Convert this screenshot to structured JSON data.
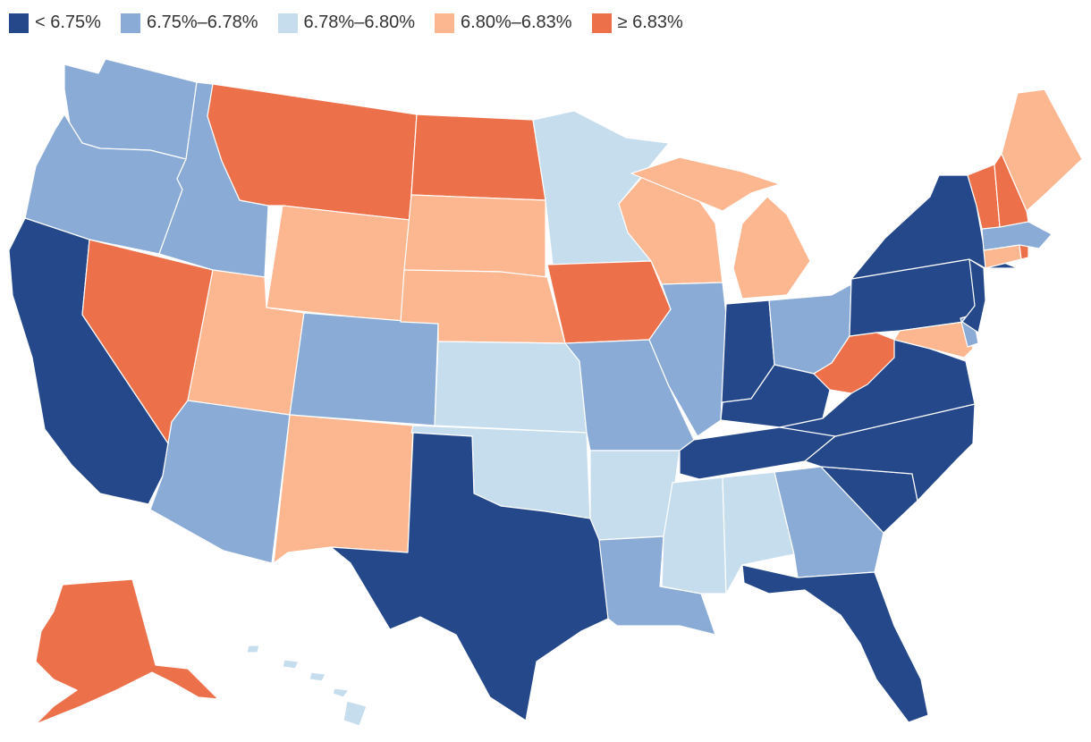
{
  "legend": {
    "items": [
      {
        "label": "< 6.75%",
        "color": "#24488a",
        "class": "c1"
      },
      {
        "label": "6.75%–6.78%",
        "color": "#8aabd5",
        "class": "c2"
      },
      {
        "label": "6.78%–6.80%",
        "color": "#c6ddee",
        "class": "c3"
      },
      {
        "label": "6.80%–6.83%",
        "color": "#fcb690",
        "class": "c4"
      },
      {
        "label": "≥ 6.83%",
        "color": "#ec714b",
        "class": "c5"
      }
    ]
  },
  "states": {
    "WA": "c2",
    "OR": "c2",
    "CA": "c1",
    "NV": "c5",
    "ID": "c2",
    "MT": "c5",
    "WY": "c4",
    "UT": "c4",
    "AZ": "c2",
    "CO": "c2",
    "NM": "c4",
    "ND": "c5",
    "SD": "c4",
    "NE": "c4",
    "KS": "c3",
    "OK": "c3",
    "TX": "c1",
    "MN": "c3",
    "IA": "c5",
    "MO": "c2",
    "AR": "c3",
    "LA": "c2",
    "WI": "c4",
    "IL": "c2",
    "MI": "c4",
    "IN": "c1",
    "OH": "c2",
    "KY": "c1",
    "TN": "c1",
    "MS": "c3",
    "AL": "c3",
    "GA": "c2",
    "FL": "c1",
    "SC": "c1",
    "NC": "c1",
    "VA": "c1",
    "WV": "c5",
    "MD": "c4",
    "DE": "c2",
    "NJ": "c1",
    "PA": "c1",
    "NY": "c1",
    "CT": "c4",
    "RI": "c5",
    "MA": "c2",
    "VT": "c5",
    "NH": "c5",
    "ME": "c4",
    "AK": "c5",
    "HI": "c3"
  }
}
